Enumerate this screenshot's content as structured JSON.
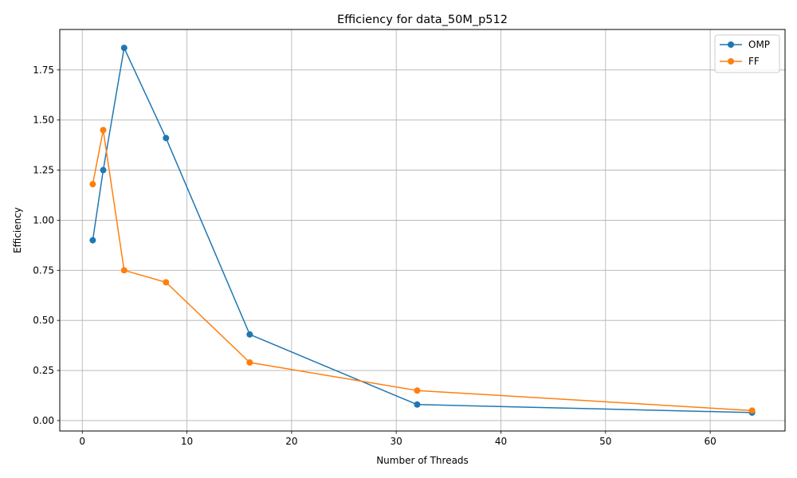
{
  "chart_data": {
    "type": "line",
    "title": "Efficiency for data_50M_p512",
    "xlabel": "Number of Threads",
    "ylabel": "Efficiency",
    "xlim": [
      -2.15,
      67.15
    ],
    "ylim": [
      -0.052,
      1.952
    ],
    "xticks": [
      0,
      10,
      20,
      30,
      40,
      50,
      60
    ],
    "xtick_labels": [
      "0",
      "10",
      "20",
      "30",
      "40",
      "50",
      "60"
    ],
    "yticks": [
      0,
      0.25,
      0.5,
      0.75,
      1.0,
      1.25,
      1.5,
      1.75
    ],
    "ytick_labels": [
      "0.00",
      "0.25",
      "0.50",
      "0.75",
      "1.00",
      "1.25",
      "1.50",
      "1.75"
    ],
    "grid": true,
    "legend_position": "top-right",
    "series": [
      {
        "name": "OMP",
        "color": "#1f77b4",
        "x": [
          1,
          2,
          4,
          8,
          16,
          32,
          64
        ],
        "y": [
          0.9,
          1.25,
          1.86,
          1.41,
          0.43,
          0.08,
          0.04
        ]
      },
      {
        "name": "FF",
        "color": "#ff7f0e",
        "x": [
          1,
          2,
          4,
          8,
          16,
          32,
          64
        ],
        "y": [
          1.18,
          1.45,
          0.75,
          0.69,
          0.29,
          0.15,
          0.05
        ]
      }
    ]
  }
}
